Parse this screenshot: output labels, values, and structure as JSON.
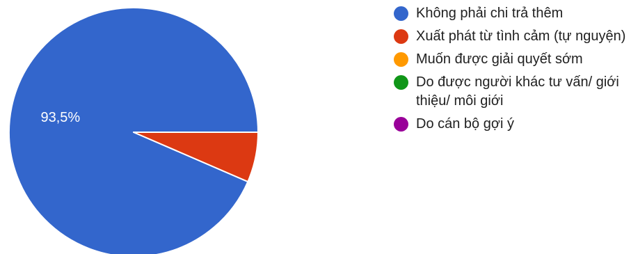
{
  "chart_data": {
    "type": "pie",
    "categories": [
      "Không phải chi trả thêm",
      "Xuất phát từ tình cảm (tự nguyện)",
      "Muốn được giải quyết sớm",
      "Do được người khác tư vấn/ giới thiệu/ môi giới",
      "Do cán bộ gợi ý"
    ],
    "values": [
      93.5,
      6.5,
      0,
      0,
      0
    ],
    "colors": [
      "#3366cc",
      "#dc3912",
      "#ff9900",
      "#109618",
      "#990099"
    ],
    "data_labels": [
      "93,5%",
      "",
      "",
      "",
      ""
    ],
    "legend_position": "right",
    "title": ""
  }
}
